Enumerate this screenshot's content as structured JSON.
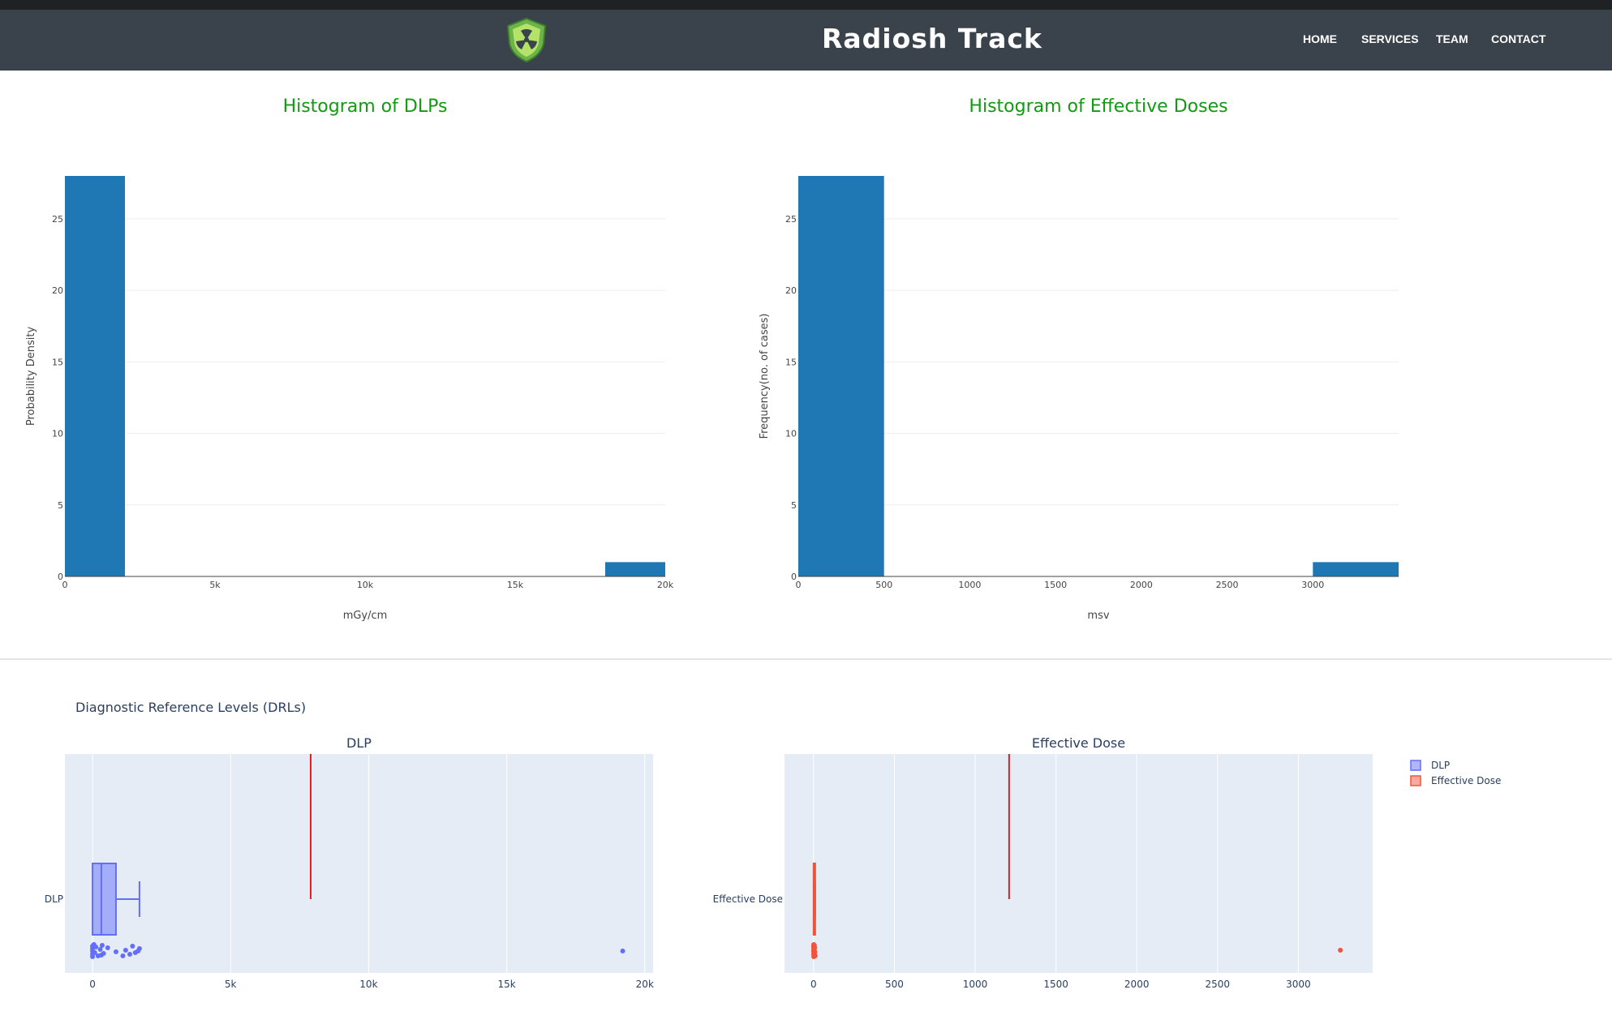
{
  "header": {
    "title": "Radiosh Track",
    "nav": [
      "HOME",
      "SERVICES",
      "TEAM",
      "CONTACT"
    ],
    "logo_icon": "radiation-shield-icon"
  },
  "histograms": {
    "dlp_title": "Histogram of DLPs",
    "ed_title": "Histogram of Effective Doses"
  },
  "drl_title": "Diagnostic Reference Levels (DRLs)",
  "colors": {
    "bar": "#1f77b4",
    "title": "#129a12",
    "dlp": "#636efa",
    "ed": "#ef553b",
    "plotbg": "#e5ecf6",
    "nav": "#3a434b"
  },
  "chart_data": [
    {
      "type": "bar",
      "title": "Histogram of DLPs",
      "xlabel": "mGy/cm",
      "ylabel": "Probability Density",
      "xlim": [
        0,
        20000
      ],
      "ylim": [
        0,
        28
      ],
      "xticks": [
        0,
        5000,
        10000,
        15000,
        20000
      ],
      "xtick_labels": [
        "0",
        "5k",
        "10k",
        "15k",
        "20k"
      ],
      "yticks": [
        0,
        5,
        10,
        15,
        20,
        25
      ],
      "bins": [
        {
          "x0": 0,
          "x1": 2000,
          "value": 28
        },
        {
          "x0": 18000,
          "x1": 20000,
          "value": 1
        }
      ]
    },
    {
      "type": "bar",
      "title": "Histogram of Effective Doses",
      "xlabel": "msv",
      "ylabel": "Frequency(no. of cases)",
      "xlim": [
        0,
        3500
      ],
      "ylim": [
        0,
        28
      ],
      "xticks": [
        0,
        500,
        1000,
        1500,
        2000,
        2500,
        3000
      ],
      "xtick_labels": [
        "0",
        "500",
        "1000",
        "1500",
        "2000",
        "2500",
        "3000"
      ],
      "yticks": [
        0,
        5,
        10,
        15,
        20,
        25
      ],
      "bins": [
        {
          "x0": 0,
          "x1": 500,
          "value": 28
        },
        {
          "x0": 3000,
          "x1": 3500,
          "value": 1
        }
      ]
    },
    {
      "type": "box",
      "title": "DLP",
      "category": "DLP",
      "xlim": [
        -1000,
        20300
      ],
      "xticks": [
        0,
        5000,
        10000,
        15000,
        20000
      ],
      "xtick_labels": [
        "0",
        "5k",
        "10k",
        "15k",
        "20k"
      ],
      "box": {
        "min": 0,
        "q1": 0,
        "median": 320,
        "q3": 850,
        "max": 1700
      },
      "drl_line": 7900,
      "points": [
        0,
        0,
        0,
        0,
        0,
        50,
        80,
        120,
        200,
        280,
        320,
        350,
        400,
        550,
        850,
        1100,
        1200,
        1350,
        1450,
        1550,
        1650,
        1700,
        19200
      ]
    },
    {
      "type": "box",
      "title": "Effective Dose",
      "category": "Effective Dose",
      "xlim": [
        -180,
        3460
      ],
      "xticks": [
        0,
        500,
        1000,
        1500,
        2000,
        2500,
        3000
      ],
      "xtick_labels": [
        "0",
        "500",
        "1000",
        "1500",
        "2000",
        "2500",
        "3000"
      ],
      "box": {
        "min": 0,
        "q1": 0,
        "median": 2,
        "q3": 5,
        "max": 10
      },
      "drl_line": 1210,
      "points": [
        0,
        0,
        0,
        0,
        1,
        1,
        2,
        2,
        3,
        3,
        4,
        5,
        6,
        7,
        8,
        10,
        3260
      ]
    }
  ],
  "legend": [
    "DLP",
    "Effective Dose"
  ]
}
